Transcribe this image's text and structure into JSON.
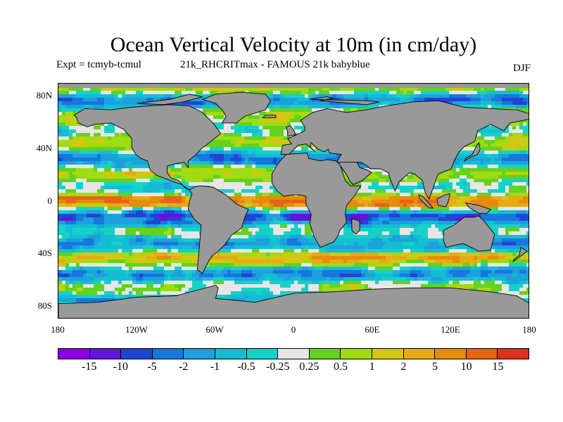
{
  "title": "Ocean Vertical Velocity at 10m (in cm/day)",
  "subtitle_left": "Expt = tcmyb-tcmul",
  "subtitle_mid": "21k_RHCRITmax - FAMOUS 21k babyblue",
  "season": "DJF",
  "lat_labels": [
    "80N",
    "40N",
    "0",
    "40S",
    "80S"
  ],
  "lon_labels": [
    "180",
    "120W",
    "60W",
    "0",
    "60E",
    "120E",
    "180"
  ],
  "colorbar": {
    "colors": [
      "#8c00e6",
      "#6414d8",
      "#1e46d2",
      "#1478dc",
      "#1ea0dc",
      "#14bed2",
      "#14d2c8",
      "#e6e6e6",
      "#64d21e",
      "#a0dc14",
      "#d2c814",
      "#e6aa14",
      "#e68c0a",
      "#e66414",
      "#dc321e"
    ],
    "labels": [
      "-15",
      "-10",
      "-5",
      "-2",
      "-1",
      "-0.5",
      "-0.25",
      "0.25",
      "0.5",
      "1",
      "2",
      "5",
      "10",
      "15"
    ]
  },
  "map": {
    "land_color": "#999999",
    "coast_color": "#000000"
  }
}
